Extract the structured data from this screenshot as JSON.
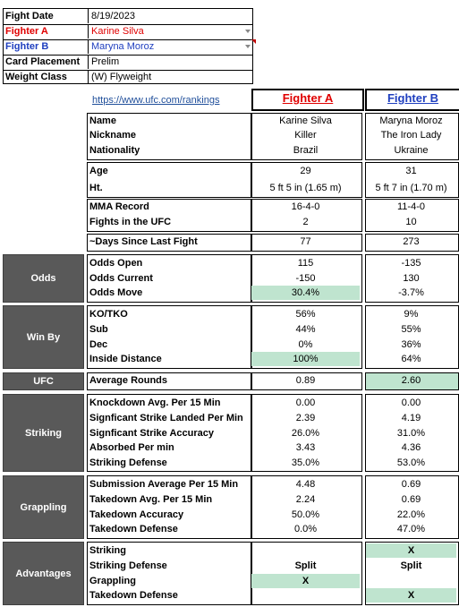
{
  "info": {
    "rows": [
      {
        "label": "Fight Date",
        "value": "8/19/2023"
      },
      {
        "label": "Fighter A",
        "value": "Karine Silva"
      },
      {
        "label": "Fighter B",
        "value": "Maryna Moroz"
      },
      {
        "label": "Card Placement",
        "value": "Prelim"
      },
      {
        "label": "Weight Class",
        "value": "(W) Flyweight"
      }
    ]
  },
  "colors": {
    "fighter_a": "#e00000",
    "fighter_b": "#1f3fbf",
    "section_bg": "#595959",
    "highlight": "#bfe4cf"
  },
  "header": {
    "link": "https://www.ufc.com/rankings",
    "fighter_a": "Fighter A",
    "fighter_b": "Fighter B"
  },
  "profile": {
    "name": {
      "label": "Name",
      "a": "Karine Silva",
      "b": "Maryna Moroz"
    },
    "nickname": {
      "label": "Nickname",
      "a": "Killer",
      "b": "The Iron Lady"
    },
    "nationality": {
      "label": "Nationality",
      "a": "Brazil",
      "b": "Ukraine"
    },
    "age": {
      "label": "Age",
      "a": "29",
      "b": "31"
    },
    "height": {
      "label": "Ht.",
      "a": "5 ft 5 in (1.65 m)",
      "b": "5 ft 7 in (1.70 m)"
    },
    "record": {
      "label": "MMA Record",
      "a": "16-4-0",
      "b": "11-4-0"
    },
    "ufc_fights": {
      "label": "Fights in the UFC",
      "a": "2",
      "b": "10"
    },
    "days": {
      "label": "~Days Since Last Fight",
      "a": "77",
      "b": "273"
    }
  },
  "odds": {
    "section": "Odds",
    "rows": [
      {
        "label": "Odds Open",
        "a": "115",
        "b": "-135"
      },
      {
        "label": "Odds Current",
        "a": "-150",
        "b": "130"
      },
      {
        "label": "Odds Move",
        "a": "30.4%",
        "b": "-3.7%"
      }
    ]
  },
  "winby": {
    "section": "Win By",
    "rows": [
      {
        "label": "KO/TKO",
        "a": "56%",
        "b": "9%"
      },
      {
        "label": "Sub",
        "a": "44%",
        "b": "55%"
      },
      {
        "label": "Dec",
        "a": "0%",
        "b": "36%"
      },
      {
        "label": "Inside Distance",
        "a": "100%",
        "b": "64%"
      }
    ]
  },
  "ufc": {
    "section": "UFC",
    "label": "Average Rounds",
    "a": "0.89",
    "b": "2.60"
  },
  "striking": {
    "section": "Striking",
    "rows": [
      {
        "label": "Knockdown Avg. Per 15 Min",
        "a": "0.00",
        "b": "0.00"
      },
      {
        "label": "Signficant Strike Landed Per Min",
        "a": "2.39",
        "b": "4.19"
      },
      {
        "label": "Signficant Strike Accuracy",
        "a": "26.0%",
        "b": "31.0%"
      },
      {
        "label": "Absorbed Per min",
        "a": "3.43",
        "b": "4.36"
      },
      {
        "label": "Striking Defense",
        "a": "35.0%",
        "b": "53.0%"
      }
    ]
  },
  "grappling": {
    "section": "Grappling",
    "rows": [
      {
        "label": "Submission Average  Per 15 Min",
        "a": "4.48",
        "b": "0.69"
      },
      {
        "label": "Takedown Avg. Per 15 Min",
        "a": "2.24",
        "b": "0.69"
      },
      {
        "label": "Takedown Accuracy",
        "a": "50.0%",
        "b": "22.0%"
      },
      {
        "label": "Takedown Defense",
        "a": "0.0%",
        "b": "47.0%"
      }
    ]
  },
  "advantages": {
    "section": "Advantages",
    "rows": [
      {
        "label": "Striking",
        "a": "",
        "b": "X"
      },
      {
        "label": "Striking Defense",
        "a": "Split",
        "b": "Split"
      },
      {
        "label": "Grappling",
        "a": "X",
        "b": ""
      },
      {
        "label": "Takedown Defense",
        "a": "",
        "b": "X"
      }
    ]
  }
}
